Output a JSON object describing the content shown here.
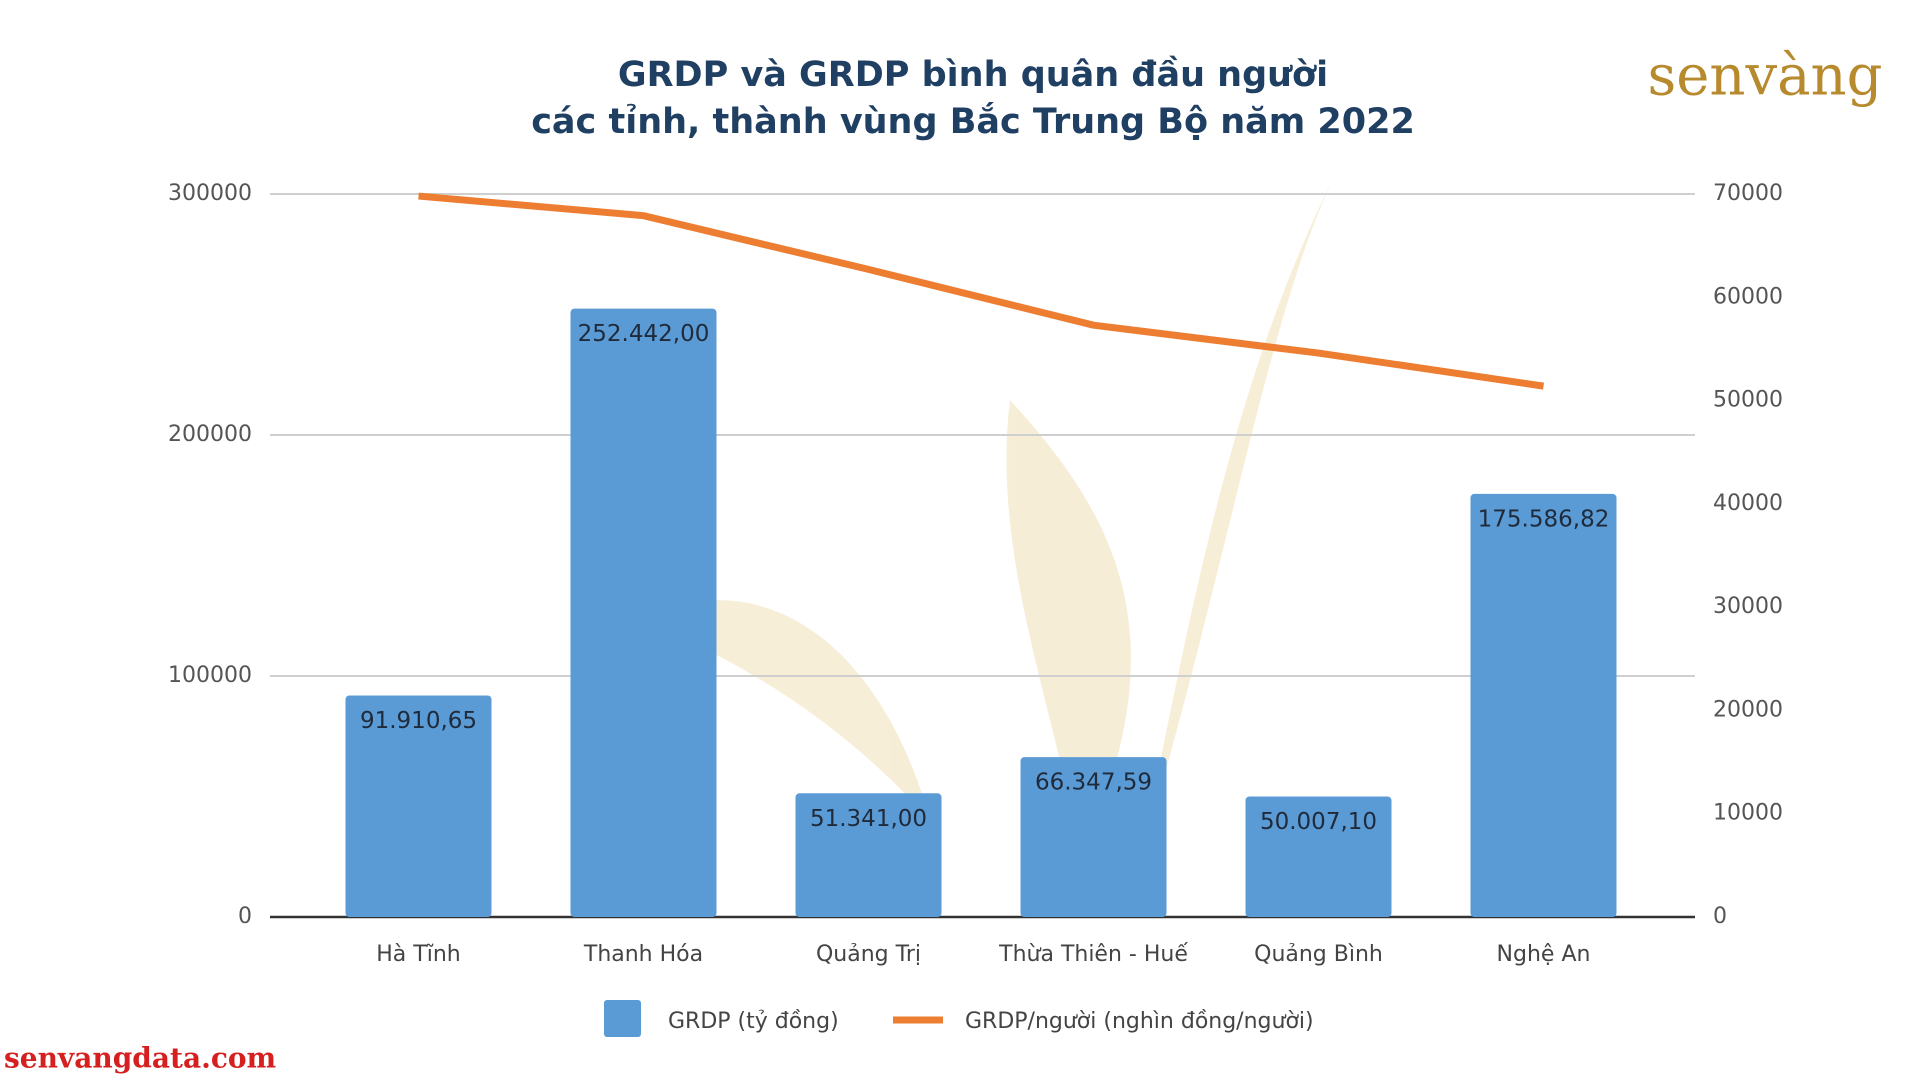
{
  "chart_data": {
    "type": "bar-line",
    "title": [
      "GRDP và GRDP bình quân đầu người",
      "các tỉnh, thành vùng Bắc Trung Bộ năm 2022"
    ],
    "logo": "senvàng",
    "footer": "senvangdata.com",
    "categories": [
      "Hà Tĩnh",
      "Thanh Hóa",
      "Quảng Trị",
      "Thừa Thiên - Huế",
      "Quảng Bình",
      "Nghệ An"
    ],
    "series": [
      {
        "name": "GRDP (tỷ đồng)",
        "color": "#5b9bd5",
        "type": "bar",
        "values": [
          91910.65,
          252442.0,
          51341.0,
          66347.59,
          50007.1,
          175586.82
        ],
        "value_labels": [
          "91.910,65",
          "252.442,00",
          "51.341,00",
          "66.347,59",
          "50.007,10",
          "175.586,82"
        ]
      },
      {
        "name": "GRDP/người (nghìn đồng/người)",
        "color": "#ed7d31",
        "type": "line",
        "axis": "y2",
        "values": [
          69800,
          67900,
          62700,
          57300,
          54600,
          51400
        ]
      }
    ],
    "ylim": [
      0,
      300000
    ],
    "yticks": [
      0,
      100000,
      200000,
      300000
    ],
    "y2lim": [
      0,
      70000
    ],
    "y2ticks": [
      0,
      10000,
      20000,
      30000,
      40000,
      50000,
      60000,
      70000
    ],
    "grid": true,
    "legend": "bottom"
  }
}
